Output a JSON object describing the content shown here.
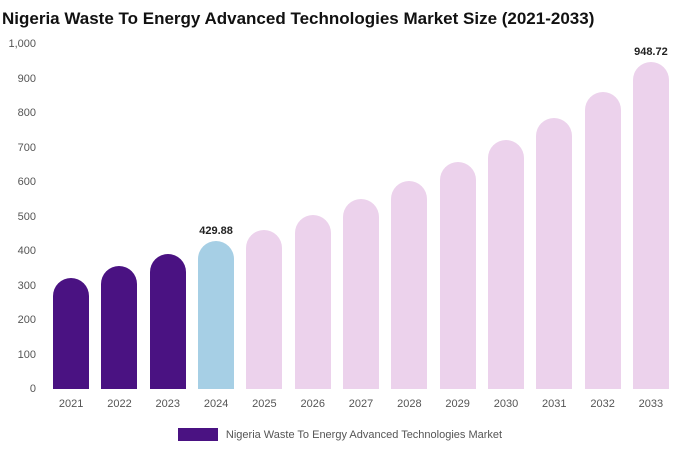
{
  "chart_data": {
    "type": "bar",
    "title": "Nigeria Waste To Energy Advanced Technologies Market Size (2021-2033)",
    "xlabel": "",
    "ylabel": "",
    "ylim": [
      0,
      1000
    ],
    "grid": false,
    "legend_position": "bottom",
    "y_ticks": [
      {
        "label": "1,000",
        "value": 1000
      },
      {
        "label": "900",
        "value": 900
      },
      {
        "label": "800",
        "value": 800
      },
      {
        "label": "700",
        "value": 700
      },
      {
        "label": "600",
        "value": 600
      },
      {
        "label": "500",
        "value": 500
      },
      {
        "label": "400",
        "value": 400
      },
      {
        "label": "300",
        "value": 300
      },
      {
        "label": "200",
        "value": 200
      },
      {
        "label": "100",
        "value": 100
      },
      {
        "label": "0",
        "value": 0
      }
    ],
    "categories": [
      "2021",
      "2022",
      "2023",
      "2024",
      "2025",
      "2026",
      "2027",
      "2028",
      "2029",
      "2030",
      "2031",
      "2032",
      "2033"
    ],
    "series": [
      {
        "name": "Nigeria Waste To Energy Advanced Technologies Market",
        "values": [
          322,
          356,
          391,
          429.88,
          462,
          505,
          551,
          604,
          658,
          721,
          786,
          860,
          948.72
        ]
      }
    ],
    "points": [
      {
        "year": "2021",
        "value": 322,
        "color": "historical",
        "label": ""
      },
      {
        "year": "2022",
        "value": 356,
        "color": "historical",
        "label": ""
      },
      {
        "year": "2023",
        "value": 391,
        "color": "historical",
        "label": ""
      },
      {
        "year": "2024",
        "value": 429.88,
        "color": "current",
        "label": "429.88"
      },
      {
        "year": "2025",
        "value": 462,
        "color": "forecast",
        "label": ""
      },
      {
        "year": "2026",
        "value": 505,
        "color": "forecast",
        "label": ""
      },
      {
        "year": "2027",
        "value": 551,
        "color": "forecast",
        "label": ""
      },
      {
        "year": "2028",
        "value": 604,
        "color": "forecast",
        "label": ""
      },
      {
        "year": "2029",
        "value": 658,
        "color": "forecast",
        "label": ""
      },
      {
        "year": "2030",
        "value": 721,
        "color": "forecast",
        "label": ""
      },
      {
        "year": "2031",
        "value": 786,
        "color": "forecast",
        "label": ""
      },
      {
        "year": "2032",
        "value": 860,
        "color": "forecast",
        "label": ""
      },
      {
        "year": "2033",
        "value": 948.72,
        "color": "forecast",
        "label": "948.72"
      }
    ]
  },
  "colors": {
    "historical": "#4a1282",
    "current": "#a6cfe5",
    "forecast": "#ecd2ec"
  },
  "legend": {
    "label": "Nigeria Waste To Energy Advanced Technologies Market"
  }
}
